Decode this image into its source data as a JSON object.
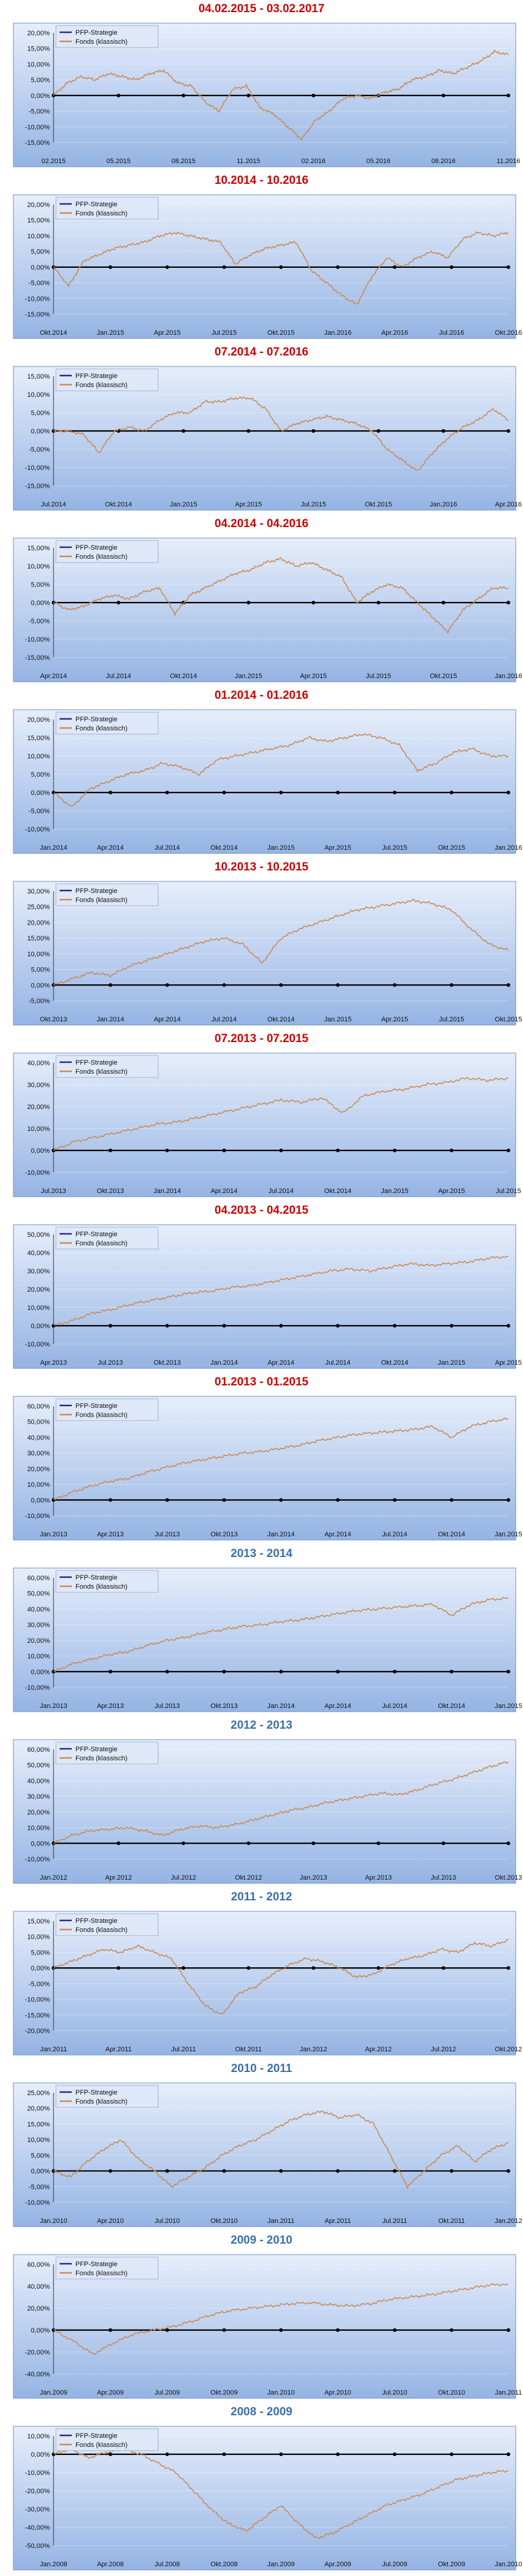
{
  "legend_series": [
    "PFP-Strategie",
    "Fonds (klassisch)"
  ],
  "colors": {
    "fonds": "#c98a55",
    "pfp": "#2a2a7a",
    "title_dated": "#cc0000",
    "title_years": "#3a6fa8",
    "bg_top": "#e6eefb",
    "bg_bottom": "#95b4e4"
  },
  "chart_data": [
    {
      "type": "line",
      "title": "04.02.2015 - 03.02.2017",
      "title_style": "dated",
      "x_ticks": [
        "02.2015",
        "05.2015",
        "08.2015",
        "11.2015",
        "02.2016",
        "05.2016",
        "08.2016",
        "11.2016"
      ],
      "y_ticks": [
        "20,00%",
        "15,00%",
        "10,00%",
        "5,00%",
        "0,00%",
        "-5,00%",
        "-10,00%",
        "-15,00%"
      ],
      "ylim": [
        -15,
        20
      ],
      "legend": [
        "PFP-Strategie",
        "Fonds (klassisch)"
      ],
      "series": [
        {
          "name": "Fonds (klassisch)",
          "values": [
            0,
            4,
            6,
            5,
            7,
            6,
            5,
            7,
            8,
            4,
            3,
            -2,
            -5,
            2,
            3,
            -4,
            -6,
            -10,
            -14,
            -8,
            -5,
            -1,
            0,
            -1,
            1,
            2,
            5,
            6,
            8,
            7,
            9,
            11,
            14,
            13
          ]
        }
      ]
    },
    {
      "type": "line",
      "title": "10.2014 - 10.2016",
      "title_style": "dated",
      "x_ticks": [
        "Okt.2014",
        "Jan.2015",
        "Apr.2015",
        "Jul.2015",
        "Okt.2015",
        "Jan.2016",
        "Apr.2016",
        "Jul.2016",
        "Okt.2016"
      ],
      "y_ticks": [
        "20,00%",
        "15,00%",
        "10,00%",
        "5,00%",
        "0,00%",
        "-5,00%",
        "-10,00%",
        "-15,00%"
      ],
      "ylim": [
        -15,
        20
      ],
      "legend": [
        "PFP-Strategie",
        "Fonds (klassisch)"
      ],
      "series": [
        {
          "name": "Fonds (klassisch)",
          "values": [
            0,
            -6,
            2,
            4,
            6,
            7,
            8,
            10,
            11,
            10,
            9,
            8,
            1,
            4,
            6,
            7,
            8,
            -1,
            -5,
            -9,
            -12,
            -3,
            3,
            0,
            3,
            5,
            3,
            9,
            11,
            10,
            11
          ]
        }
      ]
    },
    {
      "type": "line",
      "title": "07.2014 - 07.2016",
      "title_style": "dated",
      "x_ticks": [
        "Jul.2014",
        "Okt.2014",
        "Jan.2015",
        "Apr.2015",
        "Jul.2015",
        "Okt.2015",
        "Jan.2016",
        "Apr.2016"
      ],
      "y_ticks": [
        "15,00%",
        "10,00%",
        "5,00%",
        "0,00%",
        "-5,00%",
        "-10,00%",
        "-15,00%"
      ],
      "ylim": [
        -15,
        15
      ],
      "legend": [
        "PFP-Strategie",
        "Fonds (klassisch)"
      ],
      "series": [
        {
          "name": "Fonds (klassisch)",
          "values": [
            0,
            0,
            -1,
            -6,
            0,
            1,
            0,
            3,
            5,
            5,
            8,
            8,
            9,
            9,
            6,
            0,
            2,
            3,
            4,
            3,
            2,
            0,
            -5,
            -8,
            -11,
            -6,
            -2,
            1,
            3,
            6,
            3
          ]
        }
      ]
    },
    {
      "type": "line",
      "title": "04.2014 - 04.2016",
      "title_style": "dated",
      "x_ticks": [
        "Apr.2014",
        "Jul.2014",
        "Okt.2014",
        "Jan.2015",
        "Apr.2015",
        "Jul.2015",
        "Okt.2015",
        "Jan.2016"
      ],
      "y_ticks": [
        "15,00%",
        "10,00%",
        "5,00%",
        "0,00%",
        "-5,00%",
        "-10,00%",
        "-15,00%"
      ],
      "ylim": [
        -15,
        15
      ],
      "legend": [
        "PFP-Strategie",
        "Fonds (klassisch)"
      ],
      "series": [
        {
          "name": "Fonds (klassisch)",
          "values": [
            0,
            -2,
            -1,
            1,
            2,
            1,
            3,
            4,
            -3,
            2,
            4,
            6,
            8,
            9,
            11,
            12,
            10,
            11,
            9,
            7,
            0,
            3,
            5,
            4,
            0,
            -4,
            -8,
            -2,
            1,
            4,
            4
          ]
        }
      ]
    },
    {
      "type": "line",
      "title": "01.2014 - 01.2016",
      "title_style": "dated",
      "x_ticks": [
        "Jan.2014",
        "Apr.2014",
        "Jul.2014",
        "Okt.2014",
        "Jan.2015",
        "Apr.2015",
        "Jul.2015",
        "Okt.2015",
        "Jan.2016"
      ],
      "y_ticks": [
        "20,00%",
        "15,00%",
        "10,00%",
        "5,00%",
        "0,00%",
        "-5,00%",
        "-10,00%"
      ],
      "ylim": [
        -10,
        20
      ],
      "legend": [
        "PFP-Strategie",
        "Fonds (klassisch)"
      ],
      "series": [
        {
          "name": "Fonds (klassisch)",
          "values": [
            0,
            -4,
            1,
            3,
            5,
            6,
            8,
            7,
            5,
            9,
            10,
            11,
            12,
            13,
            15,
            14,
            15,
            16,
            15,
            13,
            6,
            8,
            11,
            12,
            10,
            10
          ]
        }
      ]
    },
    {
      "type": "line",
      "title": "10.2013 - 10.2015",
      "title_style": "dated",
      "x_ticks": [
        "Okt.2013",
        "Jan.2014",
        "Apr.2014",
        "Jul.2014",
        "Okt.2014",
        "Jan.2015",
        "Apr.2015",
        "Jul.2015",
        "Okt.2015"
      ],
      "y_ticks": [
        "30,00%",
        "25,00%",
        "20,00%",
        "15,00%",
        "10,00%",
        "5,00%",
        "0,00%",
        "-5,00%"
      ],
      "ylim": [
        -5,
        30
      ],
      "legend": [
        "PFP-Strategie",
        "Fonds (klassisch)"
      ],
      "series": [
        {
          "name": "Fonds (klassisch)",
          "values": [
            0,
            2,
            4,
            3,
            6,
            8,
            10,
            12,
            14,
            15,
            13,
            7,
            15,
            18,
            20,
            22,
            24,
            25,
            26,
            27,
            26,
            24,
            18,
            13,
            11
          ]
        }
      ]
    },
    {
      "type": "line",
      "title": "07.2013 - 07.2015",
      "title_style": "dated",
      "x_ticks": [
        "Jul.2013",
        "Okt.2013",
        "Jan.2014",
        "Apr.2014",
        "Jul.2014",
        "Okt.2014",
        "Jan.2015",
        "Apr.2015",
        "Jul.2015"
      ],
      "y_ticks": [
        "40,00%",
        "30,00%",
        "20,00%",
        "10,00%",
        "0,00%",
        "-10,00%"
      ],
      "ylim": [
        -10,
        40
      ],
      "legend": [
        "PFP-Strategie",
        "Fonds (klassisch)"
      ],
      "series": [
        {
          "name": "Fonds (klassisch)",
          "values": [
            0,
            4,
            6,
            8,
            10,
            12,
            13,
            15,
            17,
            19,
            21,
            23,
            22,
            24,
            17,
            25,
            27,
            28,
            30,
            31,
            33,
            32,
            33
          ]
        }
      ]
    },
    {
      "type": "line",
      "title": "04.2013 - 04.2015",
      "title_style": "dated",
      "x_ticks": [
        "Apr.2013",
        "Jul.2013",
        "Okt.2013",
        "Jan.2014",
        "Apr.2014",
        "Jul.2014",
        "Okt.2014",
        "Jan.2015",
        "Apr.2015"
      ],
      "y_ticks": [
        "50,00%",
        "40,00%",
        "30,00%",
        "20,00%",
        "10,00%",
        "0,00%",
        "-10,00%"
      ],
      "ylim": [
        -10,
        50
      ],
      "legend": [
        "PFP-Strategie",
        "Fonds (klassisch)"
      ],
      "series": [
        {
          "name": "Fonds (klassisch)",
          "values": [
            0,
            3,
            7,
            9,
            12,
            14,
            16,
            18,
            19,
            21,
            22,
            24,
            26,
            28,
            30,
            31,
            30,
            32,
            34,
            33,
            34,
            35,
            37,
            38
          ]
        }
      ]
    },
    {
      "type": "line",
      "title": "01.2013 - 01.2015",
      "title_style": "dated",
      "x_ticks": [
        "Jan.2013",
        "Apr.2013",
        "Jul.2013",
        "Okt.2013",
        "Jan.2014",
        "Apr.2014",
        "Jul.2014",
        "Okt.2014",
        "Jan.2015"
      ],
      "y_ticks": [
        "60,00%",
        "50,00%",
        "40,00%",
        "30,00%",
        "20,00%",
        "10,00%",
        "0,00%",
        "-10,00%"
      ],
      "ylim": [
        -10,
        60
      ],
      "legend": [
        "PFP-Strategie",
        "Fonds (klassisch)"
      ],
      "series": [
        {
          "name": "Fonds (klassisch)",
          "values": [
            0,
            5,
            9,
            12,
            14,
            18,
            21,
            24,
            26,
            28,
            30,
            31,
            33,
            35,
            38,
            40,
            42,
            43,
            44,
            45,
            47,
            40,
            47,
            50,
            52
          ]
        }
      ]
    },
    {
      "type": "line",
      "title": "2013 - 2014",
      "title_style": "years",
      "x_ticks": [
        "Jan.2013",
        "Apr.2013",
        "Jul.2013",
        "Okt.2013",
        "Jan.2014",
        "Apr.2014",
        "Jul.2014",
        "Okt.2014",
        "Jan.2015"
      ],
      "y_ticks": [
        "60,00%",
        "50,00%",
        "40,00%",
        "30,00%",
        "20,00%",
        "10,00%",
        "0,00%",
        "-10,00%"
      ],
      "ylim": [
        -10,
        60
      ],
      "legend": [
        "PFP-Strategie",
        "Fonds (klassisch)"
      ],
      "series": [
        {
          "name": "Fonds (klassisch)",
          "values": [
            0,
            5,
            8,
            11,
            13,
            17,
            20,
            22,
            25,
            27,
            29,
            30,
            32,
            33,
            35,
            37,
            39,
            40,
            41,
            42,
            43,
            36,
            43,
            46,
            47
          ]
        }
      ]
    },
    {
      "type": "line",
      "title": "2012 - 2013",
      "title_style": "years",
      "x_ticks": [
        "Jan.2012",
        "Apr.2012",
        "Jul.2012",
        "Okt.2012",
        "Jan.2013",
        "Apr.2013",
        "Jul.2013",
        "Okt.2013"
      ],
      "y_ticks": [
        "60,00%",
        "50,00%",
        "40,00%",
        "30,00%",
        "20,00%",
        "10,00%",
        "0,00%",
        "-10,00%"
      ],
      "ylim": [
        -10,
        60
      ],
      "legend": [
        "PFP-Strategie",
        "Fonds (klassisch)"
      ],
      "series": [
        {
          "name": "Fonds (klassisch)",
          "values": [
            0,
            5,
            8,
            9,
            10,
            8,
            5,
            9,
            11,
            10,
            12,
            15,
            18,
            21,
            23,
            26,
            28,
            30,
            32,
            31,
            34,
            38,
            41,
            45,
            49,
            52
          ]
        }
      ]
    },
    {
      "type": "line",
      "title": "2011 - 2012",
      "title_style": "years",
      "x_ticks": [
        "Jan.2011",
        "Apr.2011",
        "Jul.2011",
        "Okt.2011",
        "Jan.2012",
        "Apr.2012",
        "Jul.2012",
        "Okt.2012"
      ],
      "y_ticks": [
        "15,00%",
        "10,00%",
        "5,00%",
        "0,00%",
        "-5,00%",
        "-10,00%",
        "-15,00%",
        "-20,00%"
      ],
      "ylim": [
        -20,
        15
      ],
      "legend": [
        "PFP-Strategie",
        "Fonds (klassisch)"
      ],
      "series": [
        {
          "name": "Fonds (klassisch)",
          "values": [
            0,
            2,
            4,
            6,
            5,
            7,
            5,
            3,
            -5,
            -12,
            -15,
            -8,
            -6,
            -2,
            1,
            3,
            2,
            0,
            -3,
            -2,
            1,
            3,
            4,
            6,
            5,
            8,
            7,
            9
          ]
        }
      ]
    },
    {
      "type": "line",
      "title": "2010 - 2011",
      "title_style": "years",
      "x_ticks": [
        "Jan.2010",
        "Apr.2010",
        "Jul.2010",
        "Okt.2010",
        "Jan.2011",
        "Apr.2011",
        "Jul.2011",
        "Okt.2011",
        "Jan.2012"
      ],
      "y_ticks": [
        "25,00%",
        "20,00%",
        "15,00%",
        "10,00%",
        "5,00%",
        "0,00%",
        "-5,00%",
        "-10,00%"
      ],
      "ylim": [
        -10,
        25
      ],
      "legend": [
        "PFP-Strategie",
        "Fonds (klassisch)"
      ],
      "series": [
        {
          "name": "Fonds (klassisch)",
          "values": [
            0,
            -2,
            3,
            7,
            10,
            4,
            0,
            -5,
            -2,
            1,
            5,
            8,
            10,
            13,
            16,
            18,
            19,
            17,
            18,
            15,
            5,
            -5,
            0,
            5,
            8,
            3,
            7,
            9
          ]
        }
      ]
    },
    {
      "type": "line",
      "title": "2009 - 2010",
      "title_style": "years",
      "x_ticks": [
        "Jan.2009",
        "Apr.2009",
        "Jul.2009",
        "Okt.2009",
        "Jan.2010",
        "Apr.2010",
        "Jul.2010",
        "Okt.2010",
        "Jan.2011"
      ],
      "y_ticks": [
        "60,00%",
        "40,00%",
        "20,00%",
        "0,00%",
        "-20,00%",
        "-40,00%"
      ],
      "ylim": [
        -40,
        60
      ],
      "legend": [
        "PFP-Strategie",
        "Fonds (klassisch)"
      ],
      "series": [
        {
          "name": "Fonds (klassisch)",
          "values": [
            0,
            -10,
            -22,
            -12,
            -4,
            0,
            3,
            8,
            14,
            18,
            20,
            22,
            24,
            25,
            23,
            22,
            24,
            28,
            30,
            32,
            35,
            38,
            41,
            42
          ]
        }
      ]
    },
    {
      "type": "line",
      "title": "2008 - 2009",
      "title_style": "years",
      "x_ticks": [
        "Jan.2008",
        "Apr.2008",
        "Jul.2008",
        "Okt.2008",
        "Jan.2009",
        "Apr.2009",
        "Jul.2009",
        "Okt.2009",
        "Jan.2010"
      ],
      "y_ticks": [
        "10,00%",
        "0,00%",
        "-10,00%",
        "-20,00%",
        "-30,00%",
        "-40,00%",
        "-50,00%"
      ],
      "ylim": [
        -50,
        10
      ],
      "legend": [
        "PFP-Strategie",
        "Fonds (klassisch)"
      ],
      "series": [
        {
          "name": "Fonds (klassisch)",
          "values": [
            0,
            3,
            -2,
            1,
            3,
            0,
            -5,
            -10,
            -20,
            -30,
            -38,
            -42,
            -35,
            -28,
            -38,
            -46,
            -43,
            -38,
            -33,
            -28,
            -25,
            -22,
            -18,
            -14,
            -12,
            -10,
            -9
          ]
        }
      ]
    }
  ]
}
